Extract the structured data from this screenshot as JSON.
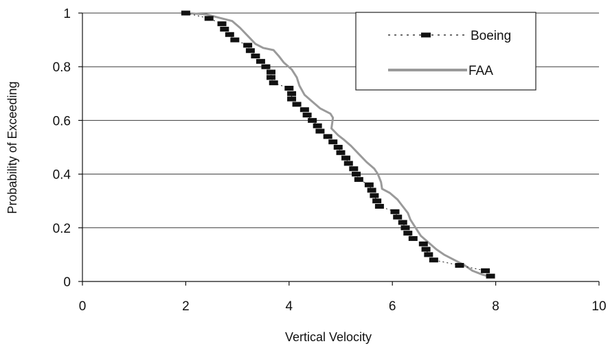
{
  "chart_data": {
    "type": "line",
    "title": "",
    "xlabel": "Vertical Velocity",
    "ylabel": "Probability of Exceeding",
    "xlim": [
      0,
      10
    ],
    "ylim": [
      0,
      1
    ],
    "x_ticks": [
      "0",
      "2",
      "4",
      "6",
      "8",
      "10"
    ],
    "y_ticks": [
      "0",
      "0.2",
      "0.4",
      "0.6",
      "0.8",
      "1"
    ],
    "grid": "horizontal",
    "legend_position": "top-right",
    "series": [
      {
        "name": "Boeing",
        "style": "dashed-markers",
        "color": "#111111",
        "points": [
          [
            2.0,
            1.0
          ],
          [
            2.45,
            0.98
          ],
          [
            2.7,
            0.96
          ],
          [
            2.75,
            0.94
          ],
          [
            2.85,
            0.92
          ],
          [
            2.95,
            0.9
          ],
          [
            3.2,
            0.88
          ],
          [
            3.25,
            0.86
          ],
          [
            3.35,
            0.84
          ],
          [
            3.45,
            0.82
          ],
          [
            3.55,
            0.8
          ],
          [
            3.65,
            0.78
          ],
          [
            3.65,
            0.76
          ],
          [
            3.7,
            0.74
          ],
          [
            4.0,
            0.72
          ],
          [
            4.05,
            0.7
          ],
          [
            4.05,
            0.68
          ],
          [
            4.15,
            0.66
          ],
          [
            4.3,
            0.64
          ],
          [
            4.35,
            0.62
          ],
          [
            4.45,
            0.6
          ],
          [
            4.55,
            0.58
          ],
          [
            4.6,
            0.56
          ],
          [
            4.75,
            0.54
          ],
          [
            4.85,
            0.52
          ],
          [
            4.95,
            0.5
          ],
          [
            5.0,
            0.48
          ],
          [
            5.1,
            0.46
          ],
          [
            5.15,
            0.44
          ],
          [
            5.25,
            0.42
          ],
          [
            5.3,
            0.4
          ],
          [
            5.35,
            0.38
          ],
          [
            5.55,
            0.36
          ],
          [
            5.6,
            0.34
          ],
          [
            5.65,
            0.32
          ],
          [
            5.7,
            0.3
          ],
          [
            5.75,
            0.28
          ],
          [
            6.05,
            0.26
          ],
          [
            6.1,
            0.24
          ],
          [
            6.2,
            0.22
          ],
          [
            6.25,
            0.2
          ],
          [
            6.3,
            0.18
          ],
          [
            6.4,
            0.16
          ],
          [
            6.6,
            0.14
          ],
          [
            6.65,
            0.12
          ],
          [
            6.7,
            0.1
          ],
          [
            6.8,
            0.08
          ],
          [
            7.3,
            0.06
          ],
          [
            7.8,
            0.04
          ],
          [
            7.9,
            0.02
          ]
        ]
      },
      {
        "name": "FAA",
        "style": "solid",
        "color": "#9a9a9a",
        "points": [
          [
            2.0,
            1.0
          ],
          [
            2.4,
            0.995
          ],
          [
            2.6,
            0.985
          ],
          [
            2.9,
            0.97
          ],
          [
            3.05,
            0.945
          ],
          [
            3.2,
            0.915
          ],
          [
            3.35,
            0.885
          ],
          [
            3.5,
            0.87
          ],
          [
            3.7,
            0.862
          ],
          [
            3.8,
            0.84
          ],
          [
            3.9,
            0.815
          ],
          [
            4.05,
            0.79
          ],
          [
            4.15,
            0.76
          ],
          [
            4.2,
            0.73
          ],
          [
            4.3,
            0.695
          ],
          [
            4.45,
            0.67
          ],
          [
            4.6,
            0.645
          ],
          [
            4.8,
            0.625
          ],
          [
            4.85,
            0.61
          ],
          [
            4.82,
            0.57
          ],
          [
            4.95,
            0.545
          ],
          [
            5.05,
            0.53
          ],
          [
            5.2,
            0.505
          ],
          [
            5.35,
            0.475
          ],
          [
            5.5,
            0.445
          ],
          [
            5.65,
            0.42
          ],
          [
            5.72,
            0.4
          ],
          [
            5.78,
            0.37
          ],
          [
            5.8,
            0.345
          ],
          [
            5.95,
            0.33
          ],
          [
            6.1,
            0.305
          ],
          [
            6.2,
            0.28
          ],
          [
            6.3,
            0.255
          ],
          [
            6.35,
            0.23
          ],
          [
            6.45,
            0.2
          ],
          [
            6.55,
            0.17
          ],
          [
            6.7,
            0.145
          ],
          [
            6.85,
            0.12
          ],
          [
            7.0,
            0.1
          ],
          [
            7.2,
            0.08
          ],
          [
            7.4,
            0.06
          ],
          [
            7.55,
            0.04
          ],
          [
            7.75,
            0.025
          ],
          [
            7.95,
            0.015
          ]
        ]
      }
    ]
  }
}
